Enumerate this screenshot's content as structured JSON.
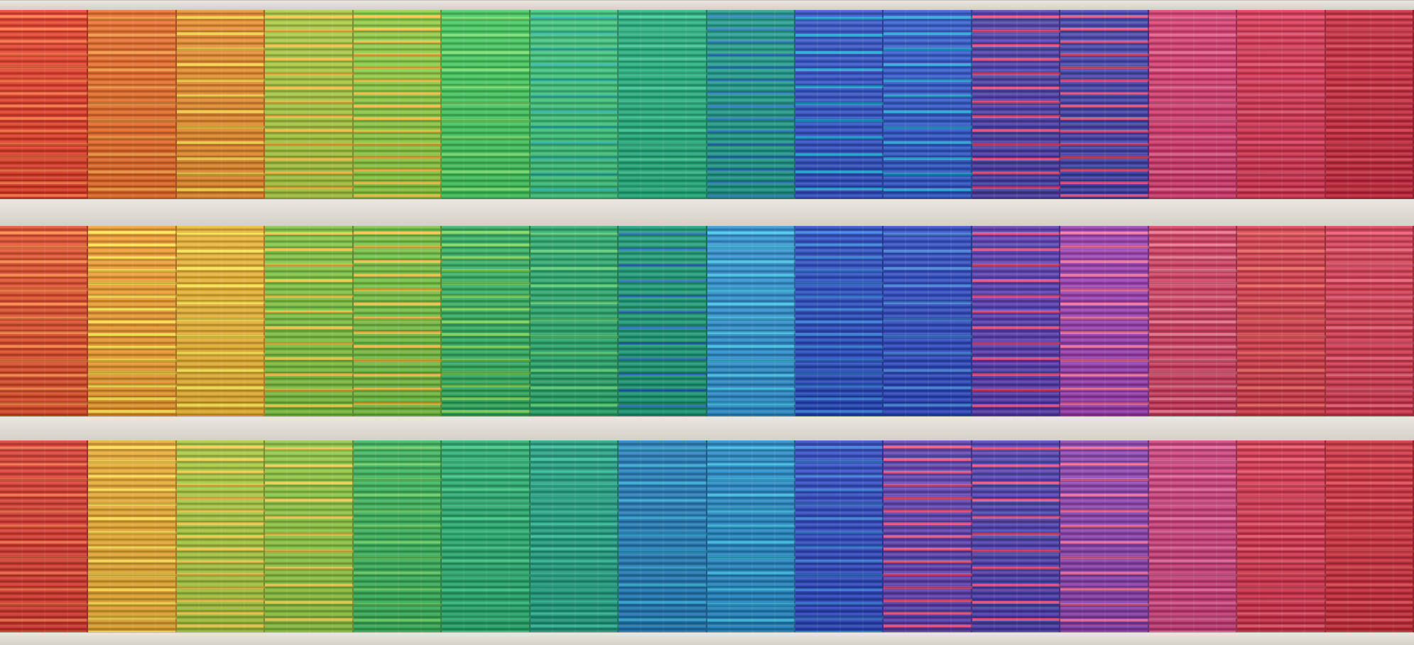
{
  "scene": {
    "bands": [
      {
        "panels": [
          {
            "base": "#e53a24",
            "stripe": "#ff6a3a"
          },
          {
            "base": "#ea6a24",
            "stripe": "#f59038"
          },
          {
            "base": "#e88a28",
            "stripe": "#f8d040"
          },
          {
            "base": "#a9c83c",
            "stripe": "#f4c23a"
          },
          {
            "base": "#8ccc3e",
            "stripe": "#f0c23c"
          },
          {
            "base": "#3fc85a",
            "stripe": "#6fe06a"
          },
          {
            "base": "#3ac47a",
            "stripe": "#27b7a0"
          },
          {
            "base": "#1fae7c",
            "stripe": "#35c48e"
          },
          {
            "base": "#1a9a8a",
            "stripe": "#1f7bb6"
          },
          {
            "base": "#2f4fc8",
            "stripe": "#1aa0d8"
          },
          {
            "base": "#2c56cc",
            "stripe": "#23a2dc"
          },
          {
            "base": "#4a3aa8",
            "stripe": "#e2447a"
          },
          {
            "base": "#3f3eaa",
            "stripe": "#d8477c"
          },
          {
            "base": "#d8386e",
            "stripe": "#e55686"
          },
          {
            "base": "#d8304e",
            "stripe": "#e04464"
          },
          {
            "base": "#c8243a",
            "stripe": "#d83648"
          }
        ]
      },
      {
        "panels": [
          {
            "base": "#e04a26",
            "stripe": "#ff7e3e"
          },
          {
            "base": "#ef9a2a",
            "stripe": "#ffe044"
          },
          {
            "base": "#eab22e",
            "stripe": "#fce248"
          },
          {
            "base": "#7cc23c",
            "stripe": "#ecc83c"
          },
          {
            "base": "#72c03e",
            "stripe": "#f0c03c"
          },
          {
            "base": "#2eae5e",
            "stripe": "#76d452"
          },
          {
            "base": "#26a86a",
            "stripe": "#52cc70"
          },
          {
            "base": "#169a74",
            "stripe": "#1e6fae"
          },
          {
            "base": "#2a8fd0",
            "stripe": "#3bc0e8"
          },
          {
            "base": "#2448c0",
            "stripe": "#2b74d8"
          },
          {
            "base": "#2a46c2",
            "stripe": "#3a78d8"
          },
          {
            "base": "#5538b0",
            "stripe": "#e0437e"
          },
          {
            "base": "#9a3ab0",
            "stripe": "#f06aa0"
          },
          {
            "base": "#d23a5e",
            "stripe": "#e86a84"
          },
          {
            "base": "#d63a48",
            "stripe": "#ee5a5a"
          },
          {
            "base": "#d6384e",
            "stripe": "#ea5670"
          }
        ]
      },
      {
        "panels": [
          {
            "base": "#d8362a",
            "stripe": "#f0603a"
          },
          {
            "base": "#e8a82c",
            "stripe": "#ffd948"
          },
          {
            "base": "#a6c63a",
            "stripe": "#f0cc42"
          },
          {
            "base": "#8cc43c",
            "stripe": "#eccc46"
          },
          {
            "base": "#36b258",
            "stripe": "#5ecc5a"
          },
          {
            "base": "#22aa6a",
            "stripe": "#36c27e"
          },
          {
            "base": "#1c9e7e",
            "stripe": "#2bb896"
          },
          {
            "base": "#1e7ab8",
            "stripe": "#26a0d0"
          },
          {
            "base": "#1f86c4",
            "stripe": "#2fb4e0"
          },
          {
            "base": "#2a44c0",
            "stripe": "#2e70d4"
          },
          {
            "base": "#5a3cb0",
            "stripe": "#e24a7e"
          },
          {
            "base": "#4a3cae",
            "stripe": "#de4a80"
          },
          {
            "base": "#8a3cae",
            "stripe": "#e8609a"
          },
          {
            "base": "#cc3a78",
            "stripe": "#e25a94"
          },
          {
            "base": "#d42e48",
            "stripe": "#e64a60"
          },
          {
            "base": "#cc2a38",
            "stripe": "#e0404a"
          }
        ]
      }
    ]
  }
}
